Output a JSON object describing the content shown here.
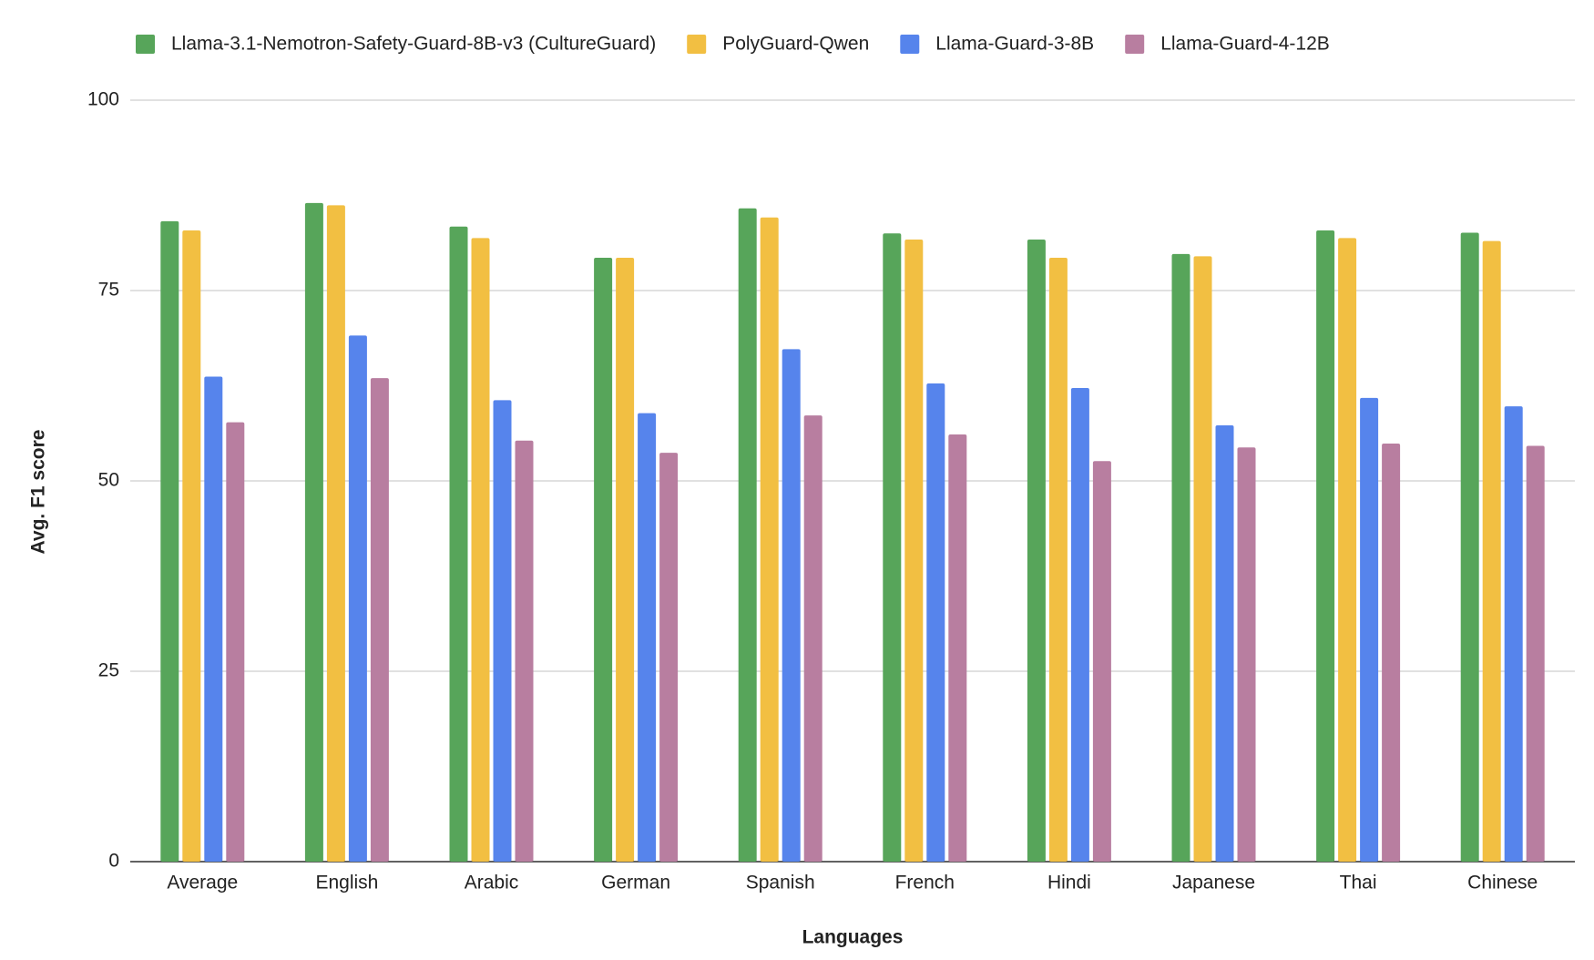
{
  "chart_data": {
    "type": "bar",
    "categories": [
      "Average",
      "English",
      "Arabic",
      "German",
      "Spanish",
      "French",
      "Hindi",
      "Japanese",
      "Thai",
      "Chinese"
    ],
    "series": [
      {
        "name": "Llama-3.1-Nemotron-Safety-Guard-8B-v3 (CultureGuard)",
        "color": "#57a55a",
        "values": [
          84.1,
          86.5,
          83.4,
          79.3,
          85.8,
          82.5,
          81.7,
          79.8,
          82.9,
          82.6
        ]
      },
      {
        "name": "PolyGuard-Qwen",
        "color": "#f2bf42",
        "values": [
          82.9,
          86.2,
          81.9,
          79.3,
          84.6,
          81.7,
          79.3,
          79.5,
          81.9,
          81.5
        ]
      },
      {
        "name": "Llama-Guard-3-8B",
        "color": "#5684ec",
        "values": [
          63.7,
          69.1,
          60.6,
          58.9,
          67.3,
          62.8,
          62.2,
          57.3,
          60.9,
          59.8
        ]
      },
      {
        "name": "Llama-Guard-4-12B",
        "color": "#b87ea0",
        "values": [
          57.7,
          63.5,
          55.3,
          53.7,
          58.6,
          56.1,
          52.6,
          54.4,
          54.9,
          54.6
        ]
      }
    ],
    "x_label": "Languages",
    "y_label": "Avg. F1 score",
    "ylim": [
      0,
      100
    ],
    "yticks": [
      0,
      25,
      50,
      75,
      100
    ],
    "grid": true,
    "legend": "top"
  }
}
